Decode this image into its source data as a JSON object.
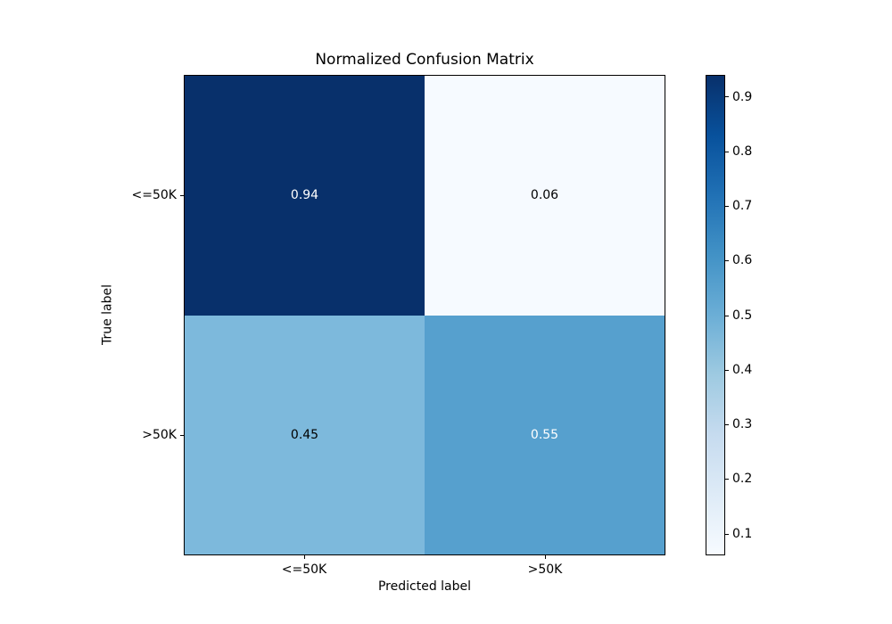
{
  "chart_data": {
    "type": "heatmap",
    "title": "Normalized Confusion Matrix",
    "xlabel": "Predicted label",
    "ylabel": "True label",
    "x_categories": [
      "<=50K",
      ">50K"
    ],
    "y_categories": [
      "<=50K",
      ">50K"
    ],
    "values": [
      [
        0.94,
        0.06
      ],
      [
        0.45,
        0.55
      ]
    ],
    "cell_labels": [
      [
        "0.94",
        "0.06"
      ],
      [
        "0.45",
        "0.55"
      ]
    ],
    "cell_colors": [
      [
        "#08306b",
        "#f6faff"
      ],
      [
        "#7db9dc",
        "#56a0ce"
      ]
    ],
    "cell_text_colors": [
      [
        "#ffffff",
        "#000000"
      ],
      [
        "#000000",
        "#ffffff"
      ]
    ],
    "colormap": "Blues",
    "vmin": 0.06,
    "vmax": 0.94,
    "grid": false,
    "colorbar": {
      "position": "right",
      "ticks": [
        0.1,
        0.2,
        0.3,
        0.4,
        0.5,
        0.6,
        0.7,
        0.8,
        0.9
      ],
      "tick_labels": [
        "0.1",
        "0.2",
        "0.3",
        "0.4",
        "0.5",
        "0.6",
        "0.7",
        "0.8",
        "0.9"
      ],
      "gradient_stops": [
        "#f7fbff",
        "#deebf7",
        "#c6dbef",
        "#9ecae1",
        "#6baed6",
        "#4292c6",
        "#2171b5",
        "#08519c",
        "#08306b"
      ]
    }
  }
}
